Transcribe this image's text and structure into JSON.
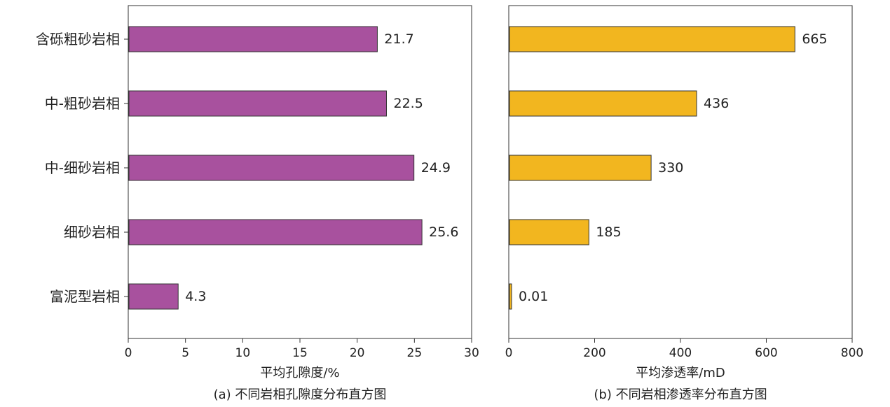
{
  "chart_data": [
    {
      "type": "bar",
      "orientation": "horizontal",
      "categories": [
        "含砾粗砂岩相",
        "中-粗砂岩相",
        "中-细砂岩相",
        "细砂岩相",
        "富泥型岩相"
      ],
      "values": [
        21.7,
        22.5,
        24.9,
        25.6,
        4.3
      ],
      "value_labels": [
        "21.7",
        "22.5",
        "24.9",
        "25.6",
        "4.3"
      ],
      "xlabel": "平均孔隙度/%",
      "caption": "(a) 不同岩相孔隙度分布直方图",
      "xlim": [
        0,
        30
      ],
      "xticks": [
        0,
        5,
        10,
        15,
        20,
        25,
        30
      ],
      "bar_color": "#a8519e",
      "grid": false
    },
    {
      "type": "bar",
      "orientation": "horizontal",
      "categories": [
        "含砾粗砂岩相",
        "中-粗砂岩相",
        "中-细砂岩相",
        "细砂岩相",
        "富泥型岩相"
      ],
      "values": [
        665,
        436,
        330,
        185,
        0.01
      ],
      "value_labels": [
        "665",
        "436",
        "330",
        "185",
        "0.01"
      ],
      "xlabel": "平均渗透率/mD",
      "caption": "(b) 不同岩相渗透率分布直方图",
      "xlim": [
        0,
        800
      ],
      "xticks": [
        0,
        200,
        400,
        600,
        800
      ],
      "bar_color": "#f2b61f",
      "grid": false
    }
  ]
}
